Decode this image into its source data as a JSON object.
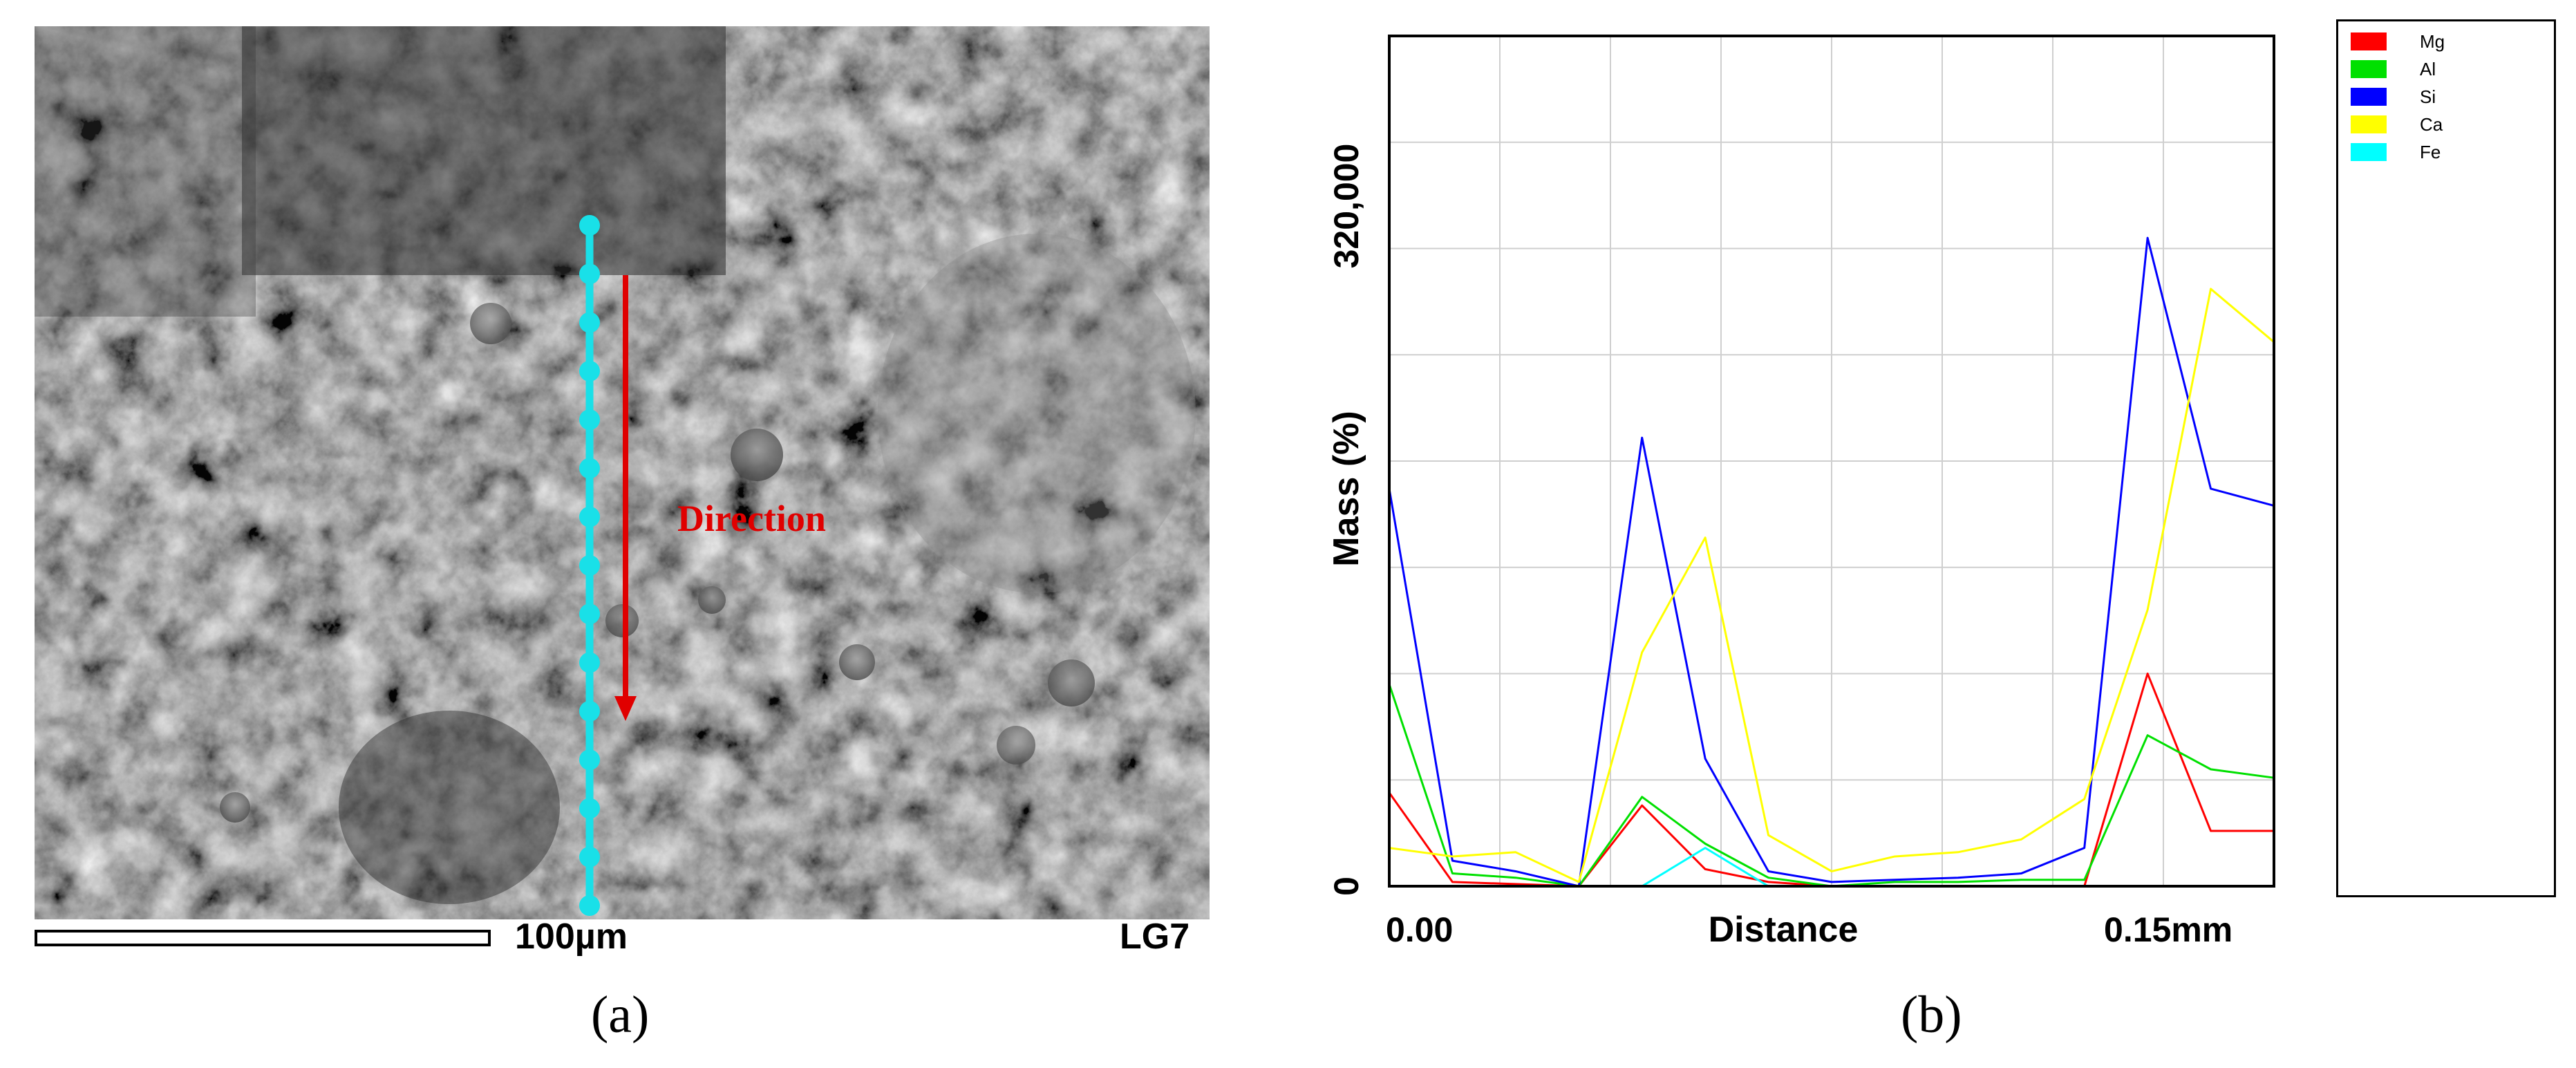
{
  "panel_a": {
    "scale_label": "100µm",
    "sample_label": "LG7",
    "direction_label": "Direction",
    "caption": "(a)",
    "line_color": "#19e0e8",
    "arrow_color": "#e00000",
    "line_point_count": 15
  },
  "panel_b": {
    "caption": "(b)"
  },
  "chart_data": {
    "type": "line",
    "title": "",
    "xlabel": "Distance",
    "ylabel": "Mass (%)",
    "x_tick_labels": [
      "0.00",
      "0.15mm"
    ],
    "y_tick_labels": [
      "0",
      "320,000"
    ],
    "xlim": [
      0,
      14
    ],
    "ylim": [
      0,
      400000
    ],
    "grid": true,
    "legend_position": "right",
    "x": [
      0,
      1,
      2,
      3,
      4,
      5,
      6,
      7,
      8,
      9,
      10,
      11,
      12,
      13,
      14
    ],
    "series": [
      {
        "name": "Mg",
        "color": "#ff0000",
        "values": [
          44000,
          2000,
          1000,
          0,
          38000,
          8000,
          2000,
          0,
          0,
          0,
          0,
          0,
          100000,
          26000,
          26000
        ]
      },
      {
        "name": "Al",
        "color": "#00e000",
        "values": [
          95000,
          6000,
          4000,
          0,
          42000,
          20000,
          4000,
          0,
          2000,
          2000,
          3000,
          3000,
          71000,
          55000,
          51000
        ]
      },
      {
        "name": "Si",
        "color": "#0000ff",
        "values": [
          187000,
          12000,
          7000,
          0,
          211000,
          60000,
          7000,
          2000,
          3000,
          4000,
          6000,
          18000,
          305000,
          187000,
          179000
        ]
      },
      {
        "name": "Ca",
        "color": "#ffff00",
        "values": [
          18000,
          14000,
          16000,
          2000,
          110000,
          164000,
          24000,
          7000,
          14000,
          16000,
          22000,
          41000,
          130000,
          281000,
          256000
        ]
      },
      {
        "name": "Fe",
        "color": "#00ffff",
        "values": [
          0,
          0,
          0,
          0,
          0,
          18000,
          0,
          0,
          0,
          0,
          0,
          0,
          0,
          0,
          0
        ]
      }
    ]
  }
}
